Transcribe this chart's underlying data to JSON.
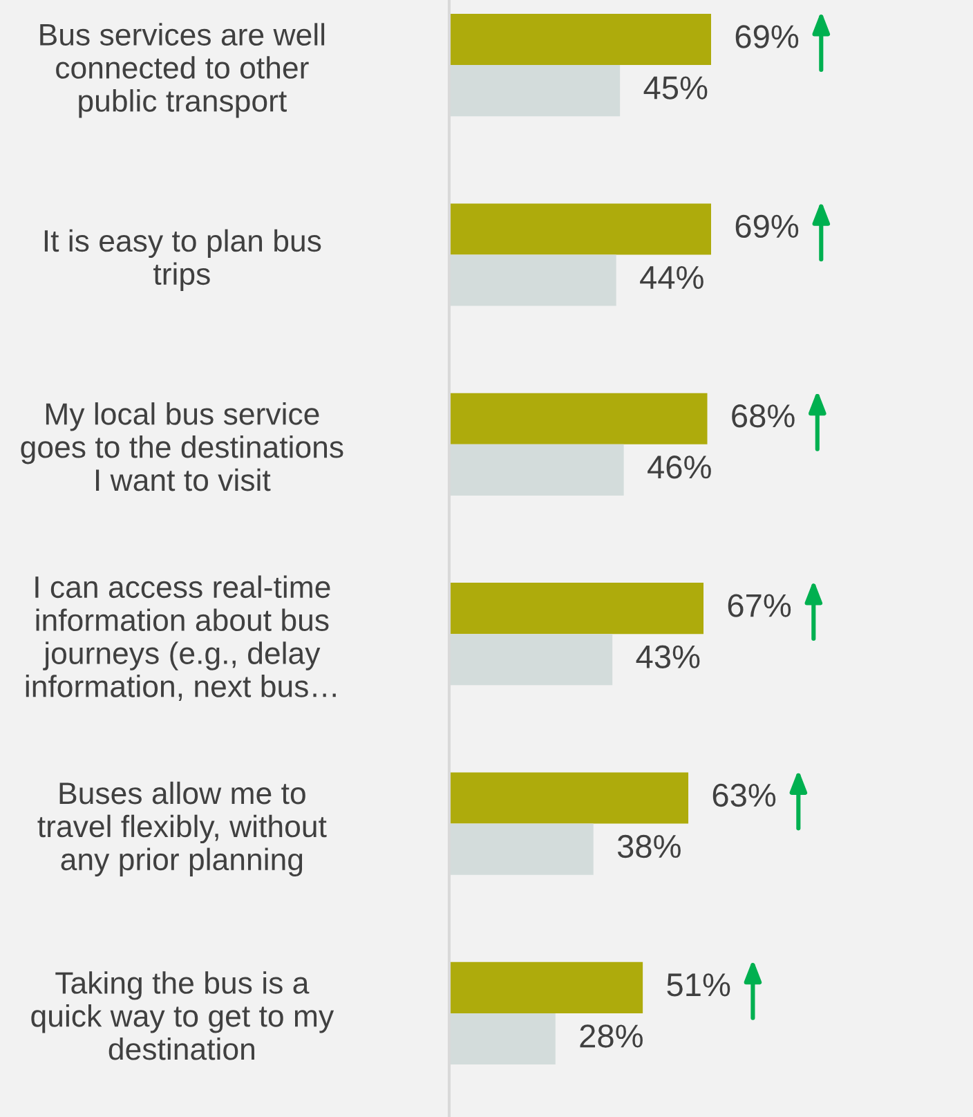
{
  "chart_data": {
    "type": "bar",
    "orientation": "horizontal",
    "categories": [
      "Bus services are well\nconnected to other\npublic transport",
      "It is easy to plan bus\ntrips",
      "My local bus service\ngoes to the destinations\nI want to visit",
      "I can access real-time\ninformation about bus\njourneys (e.g., delay\ninformation, next bus…",
      "Buses allow me to\ntravel flexibly, without\nany prior planning",
      "Taking the bus is a\nquick way to get to my\ndestination"
    ],
    "series": [
      {
        "color": "#aeab0c",
        "values": [
          69,
          69,
          68,
          67,
          63,
          51
        ],
        "value_labels": [
          "69%",
          "69%",
          "68%",
          "67%",
          "63%",
          "51%"
        ]
      },
      {
        "color": "#d3dcdb",
        "values": [
          45,
          44,
          46,
          43,
          38,
          28
        ],
        "value_labels": [
          "45%",
          "44%",
          "46%",
          "43%",
          "38%",
          "28%"
        ]
      }
    ],
    "tick_labels": "y",
    "grid": false,
    "legend": false
  }
}
